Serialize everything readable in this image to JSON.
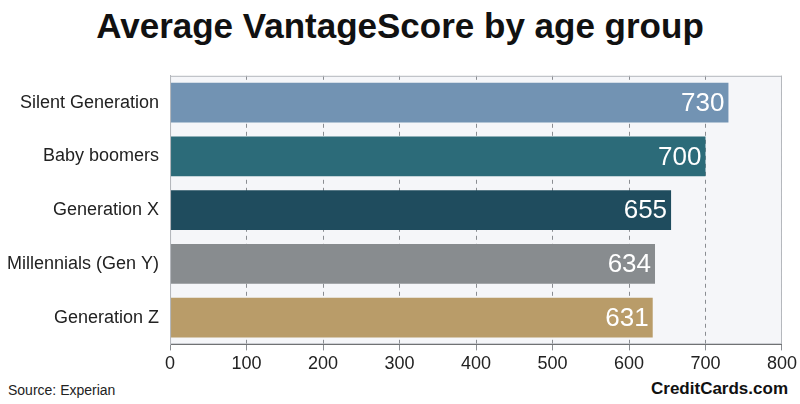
{
  "chart_data": {
    "type": "bar",
    "title": "Average VantageScore by age group",
    "orientation": "horizontal",
    "categories": [
      "Silent Generation",
      "Baby boomers",
      "Generation X",
      "Millennials (Gen Y)",
      "Generation Z"
    ],
    "values": [
      730,
      700,
      655,
      634,
      631
    ],
    "colors": [
      "#7293b3",
      "#2c6b79",
      "#1f4c5e",
      "#888c8f",
      "#b99c69"
    ],
    "xlim": [
      0,
      800
    ],
    "xticks": [
      0,
      100,
      200,
      300,
      400,
      500,
      600,
      700,
      800
    ],
    "grid": true,
    "data_labels": true,
    "annotations": [
      "Source: Experian",
      "CreditCards.com"
    ]
  }
}
